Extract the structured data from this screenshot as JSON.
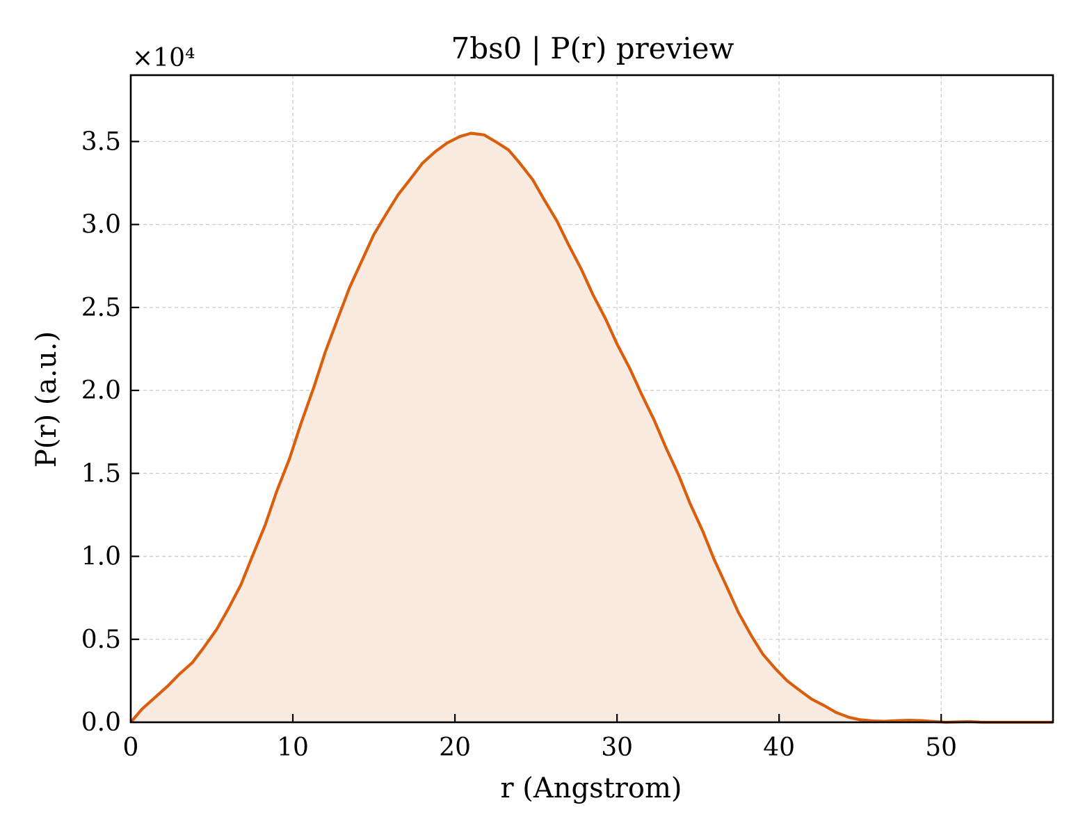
{
  "chart_data": {
    "type": "area",
    "title": "7bs0 | P(r) preview",
    "xlabel": "r (Angstrom)",
    "ylabel": "P(r) (a.u.)",
    "y_multiplier_label": "×10⁴",
    "xlim": [
      0,
      56.9
    ],
    "ylim": [
      0,
      39000
    ],
    "xticks": [
      0,
      10,
      20,
      30,
      40,
      50
    ],
    "xtick_labels": [
      "0",
      "10",
      "20",
      "30",
      "40",
      "50"
    ],
    "yticks": [
      0,
      5000,
      10000,
      15000,
      20000,
      25000,
      30000,
      35000
    ],
    "ytick_labels": [
      "0.0",
      "0.5",
      "1.0",
      "1.5",
      "2.0",
      "2.5",
      "3.0",
      "3.5"
    ],
    "grid": true,
    "line_color": "#d95f0e",
    "fill_color": "#f8eadf",
    "series": [
      {
        "x": [
          0,
          0.7,
          1.5,
          2.3,
          3.0,
          3.8,
          4.5,
          5.3,
          6.0,
          6.8,
          7.5,
          8.3,
          9.0,
          9.8,
          10.5,
          11.3,
          12.0,
          12.8,
          13.5,
          14.3,
          15.0,
          15.8,
          16.5,
          17.3,
          18.0,
          18.8,
          19.5,
          20.3,
          21.0,
          21.8,
          22.5,
          23.3,
          24.0,
          24.8,
          25.5,
          26.3,
          27.0,
          27.8,
          28.5,
          29.3,
          30.0,
          30.8,
          31.5,
          32.3,
          33.0,
          33.8,
          34.5,
          35.3,
          36.0,
          36.8,
          37.5,
          38.3,
          39.0,
          39.8,
          40.5,
          41.3,
          42.0,
          42.8,
          43.5,
          44.3,
          45.0,
          45.8,
          46.5,
          47.3,
          48.0,
          48.8,
          49.5,
          50.3,
          51.0,
          51.8,
          52.5,
          53.3,
          54.0,
          54.8,
          55.5,
          56.3,
          56.9
        ],
        "y": [
          0,
          800,
          1500,
          2200,
          2900,
          3600,
          4500,
          5600,
          6800,
          8300,
          10000,
          11900,
          13900,
          15900,
          18000,
          20200,
          22300,
          24400,
          26200,
          27900,
          29400,
          30700,
          31800,
          32800,
          33700,
          34400,
          34900,
          35300,
          35500,
          35400,
          35000,
          34500,
          33700,
          32700,
          31500,
          30200,
          28800,
          27300,
          25800,
          24300,
          22800,
          21300,
          19800,
          18200,
          16600,
          14900,
          13200,
          11500,
          9800,
          8100,
          6600,
          5200,
          4100,
          3200,
          2500,
          1900,
          1400,
          1000,
          600,
          300,
          150,
          80,
          60,
          100,
          120,
          100,
          50,
          0,
          20,
          40,
          0,
          0,
          0,
          0,
          0,
          0,
          0
        ]
      }
    ]
  }
}
